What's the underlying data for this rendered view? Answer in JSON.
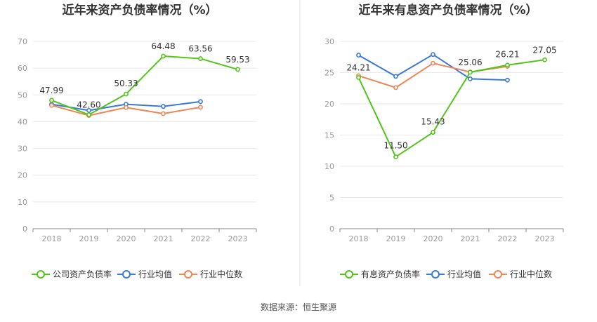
{
  "source_label": "数据来源：恒生聚源",
  "chart_data": [
    {
      "type": "line",
      "title": "近年来资产负债率情况（%）",
      "categories": [
        "2018",
        "2019",
        "2020",
        "2021",
        "2022",
        "2023"
      ],
      "ylim": [
        0,
        70
      ],
      "yticks": [
        "0",
        "10",
        "20",
        "30",
        "40",
        "50",
        "60",
        "70"
      ],
      "grid": true,
      "legend_position": "bottom",
      "series": [
        {
          "name": "公司资产负债率",
          "color": "#52c41a",
          "values": [
            47.99,
            42.6,
            50.33,
            64.48,
            63.56,
            59.53
          ],
          "labels": [
            "47.99",
            "42.60",
            "50.33",
            "64.48",
            "63.56",
            "59.53"
          ]
        },
        {
          "name": "行业均值",
          "color": "#3a78d8",
          "values": [
            46.5,
            44.2,
            46.5,
            45.7,
            47.5,
            null
          ]
        },
        {
          "name": "行业中位数",
          "color": "#ee8655",
          "values": [
            46.1,
            42.3,
            45.3,
            43.0,
            45.4,
            null
          ]
        }
      ]
    },
    {
      "type": "line",
      "title": "近年来有息资产负债率情况（%）",
      "categories": [
        "2018",
        "2019",
        "2020",
        "2021",
        "2022",
        "2023"
      ],
      "ylim": [
        0,
        30
      ],
      "yticks": [
        "0",
        "5",
        "10",
        "15",
        "20",
        "25",
        "30"
      ],
      "grid": true,
      "legend_position": "bottom",
      "series": [
        {
          "name": "有息资产负债率",
          "color": "#52c41a",
          "values": [
            24.21,
            11.5,
            15.43,
            25.06,
            26.21,
            27.05
          ],
          "labels": [
            "24.21",
            "11.50",
            "15.43",
            "25.06",
            "26.21",
            "27.05"
          ]
        },
        {
          "name": "行业均值",
          "color": "#3a78d8",
          "values": [
            27.8,
            24.4,
            27.9,
            24.0,
            23.8,
            null
          ]
        },
        {
          "name": "行业中位数",
          "color": "#ee8655",
          "values": [
            24.5,
            22.6,
            26.5,
            25.1,
            26.0,
            null
          ]
        }
      ]
    }
  ]
}
